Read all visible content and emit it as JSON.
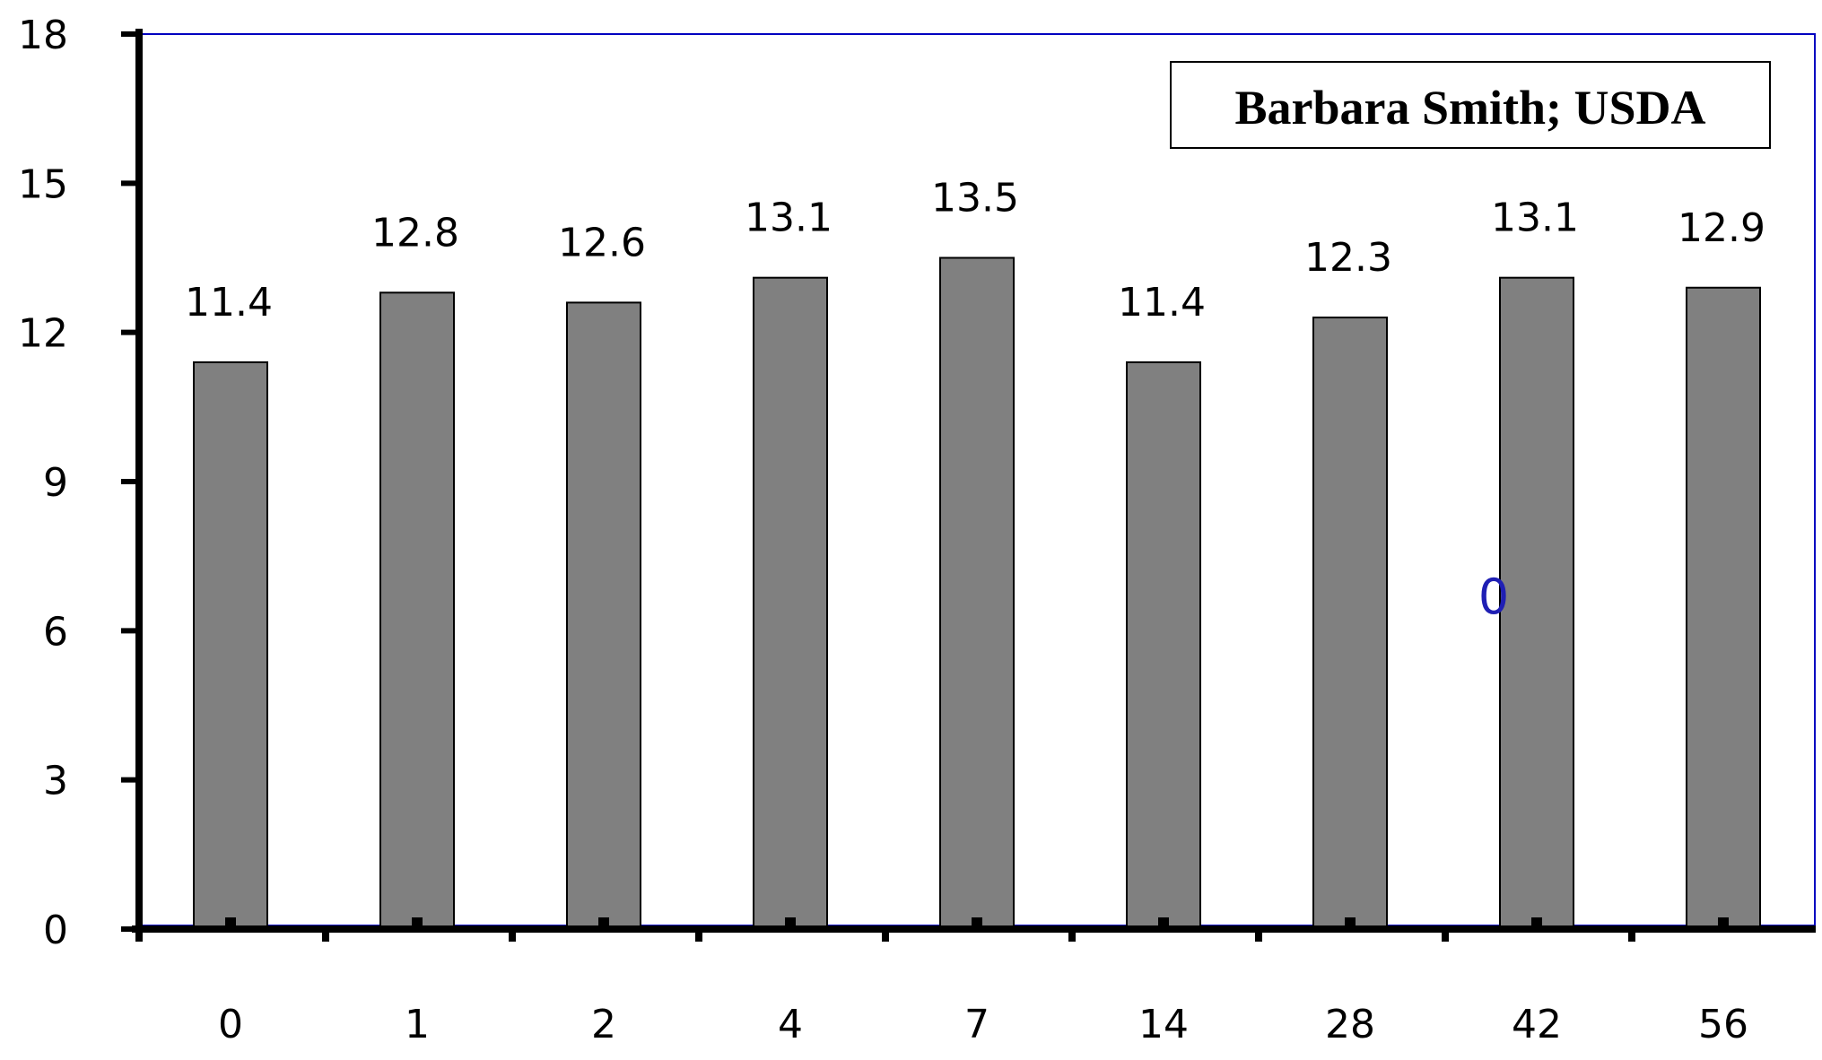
{
  "chart_data": {
    "type": "bar",
    "categories": [
      "0",
      "1",
      "2",
      "4",
      "7",
      "14",
      "28",
      "42",
      "56"
    ],
    "values": [
      11.4,
      12.8,
      12.6,
      13.1,
      13.5,
      11.4,
      12.3,
      13.1,
      12.9
    ],
    "data_labels": [
      "11.4",
      "12.8",
      "12.6",
      "13.1",
      "13.5",
      "11.4",
      "12.3",
      "13.1",
      "12.9"
    ],
    "yticks": [
      "0",
      "3",
      "6",
      "9",
      "12",
      "15",
      "18"
    ],
    "ylim": [
      0,
      18
    ],
    "title": "",
    "xlabel": "",
    "ylabel": "",
    "grid": false,
    "annotations": {
      "credit": "Barbara Smith; USDA",
      "stray_value": "0"
    },
    "colors": {
      "bar": "#808080",
      "bar_outline": "#000000",
      "plot_border": "#0000c0",
      "axis": "#000000",
      "stray_text": "#1f1fb4"
    }
  }
}
